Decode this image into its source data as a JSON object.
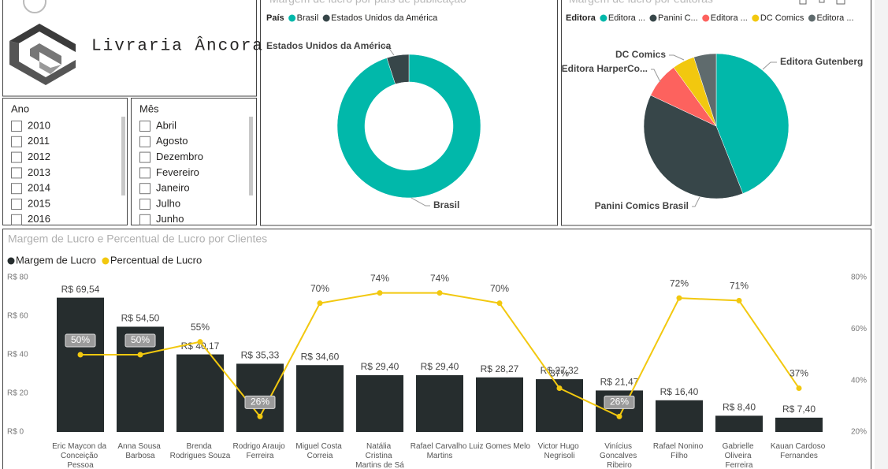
{
  "logo": {
    "text": "Livraria Âncora"
  },
  "slicers": [
    {
      "title": "Ano",
      "items": [
        "2010",
        "2011",
        "2012",
        "2013",
        "2014",
        "2015",
        "2016"
      ]
    },
    {
      "title": "Mês",
      "items": [
        "Abril",
        "Agosto",
        "Dezembro",
        "Fevereiro",
        "Janeiro",
        "Julho",
        "Junho"
      ]
    }
  ],
  "chart_data": [
    {
      "type": "donut",
      "title": "Margem de lucro por país de publicação",
      "legend_title": "País",
      "categories": [
        "Brasil",
        "Estados Unidos da América"
      ],
      "values": [
        95,
        5
      ],
      "colors": [
        "#01B8AA",
        "#374649"
      ],
      "labels": [
        "Brasil",
        "Estados Unidos da América"
      ]
    },
    {
      "type": "pie",
      "title": "Margem de lucro por editoras",
      "legend_title": "Editora",
      "categories": [
        "Editora ...",
        "Panini C...",
        "Editora ...",
        "DC Comics",
        "Editora ..."
      ],
      "values": [
        44,
        38,
        8,
        5,
        5
      ],
      "colors": [
        "#01B8AA",
        "#374649",
        "#FD625E",
        "#F2C80F",
        "#5F6B6D"
      ],
      "labels": [
        "Editora Gutenberg",
        "Panini Comics Brasil",
        "Editora HarperCo...",
        "DC Comics",
        null
      ]
    },
    {
      "type": "combo",
      "title": "Margem de Lucro e Percentual de Lucro por Clientes",
      "categories": [
        "Eric Maycon da Conceição Pessoa",
        "Anna Sousa Barbosa",
        "Brenda Rodrigues Souza",
        "Rodrigo Araujo Ferreira",
        "Miguel Costa Correia",
        "Natália Cristina Martins de Sá",
        "Rafael Carvalho Martins",
        "Luiz Gomes Melo",
        "Victor Hugo Negrisoli",
        "Vinícius Goncalves Ribeiro",
        "Rafael Nonino Filho",
        "Gabrielle Oliveira Ferreira",
        "Kauan Cardoso Fernandes"
      ],
      "series": [
        {
          "name": "Margem de Lucro",
          "color": "#262d2e",
          "kind": "bar",
          "values": [
            69.54,
            54.5,
            40.17,
            35.33,
            34.6,
            29.4,
            29.4,
            28.27,
            27.32,
            21.47,
            16.4,
            8.4,
            7.4
          ],
          "value_labels": [
            "R$ 69,54",
            "R$ 54,50",
            "R$ 40,17",
            "R$ 35,33",
            "R$ 34,60",
            "R$ 29,40",
            "R$ 29,40",
            "R$ 28,27",
            "R$ 27,32",
            "R$ 21,47",
            "R$ 16,40",
            "R$ 8,40",
            "R$ 7,40"
          ]
        },
        {
          "name": "Percentual de Lucro",
          "color": "#F2C80F",
          "kind": "line",
          "axis": "y2",
          "values": [
            50,
            50,
            55,
            26,
            70,
            74,
            74,
            70,
            37,
            26,
            72,
            71,
            37
          ],
          "value_labels": [
            "50%",
            "50%",
            "55%",
            "26%",
            "70%",
            "74%",
            "74%",
            "70%",
            "37%",
            "26%",
            "72%",
            "71%",
            "37%"
          ]
        }
      ],
      "ylim": [
        0,
        80
      ],
      "yticks": [
        {
          "value": 0,
          "label": "R$ 0"
        },
        {
          "value": 20,
          "label": "R$ 20"
        },
        {
          "value": 40,
          "label": "R$ 40"
        },
        {
          "value": 60,
          "label": "R$ 60"
        },
        {
          "value": 80,
          "label": "R$ 80"
        }
      ],
      "y2lim": [
        20,
        80
      ],
      "y2ticks": [
        {
          "value": 20,
          "label": "20%"
        },
        {
          "value": 40,
          "label": "40%"
        },
        {
          "value": 60,
          "label": "60%"
        },
        {
          "value": 80,
          "label": "80%"
        }
      ]
    }
  ]
}
